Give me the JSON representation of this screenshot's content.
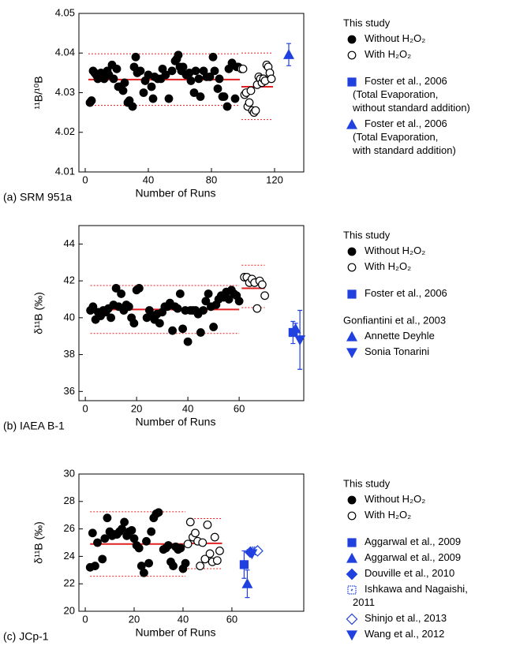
{
  "chart_data": [
    {
      "type": "scatter",
      "caption": "(a) SRM 951a",
      "xlabel": "Number of Runs",
      "ylabel": "¹¹B/¹⁰B",
      "xlim": [
        -4,
        138.5
      ],
      "ylim": [
        4.01,
        4.05
      ],
      "xticks": [
        0,
        40,
        80,
        120
      ],
      "yticks": [
        4.01,
        4.02,
        4.03,
        4.04,
        4.05
      ],
      "line_color": "#e02020",
      "series": [
        {
          "name": "Without H₂O₂",
          "group": "This study",
          "color": "#000000",
          "marker": "circle",
          "x": [
            3,
            4,
            5,
            6,
            7,
            8,
            9,
            10,
            11,
            12,
            14,
            15,
            17,
            18,
            20,
            21,
            22,
            24,
            25,
            27,
            28,
            30,
            31,
            32,
            33,
            35,
            37,
            38,
            40,
            42,
            43,
            44,
            46,
            48,
            49,
            51,
            53,
            55,
            57,
            58,
            59,
            60,
            61,
            62,
            64,
            66,
            67,
            69,
            70,
            72,
            73,
            75,
            77,
            79,
            81,
            82,
            84,
            85,
            87,
            88,
            90,
            91,
            93,
            95,
            96,
            97
          ],
          "values": [
            4.0275,
            4.028,
            4.0355,
            4.035,
            4.0345,
            4.0335,
            4.0345,
            4.035,
            4.0345,
            4.0335,
            4.0355,
            4.0345,
            4.037,
            4.0335,
            4.036,
            4.0315,
            4.0315,
            4.0305,
            4.0325,
            4.0275,
            4.028,
            4.0265,
            4.0365,
            4.039,
            4.035,
            4.0355,
            4.03,
            4.033,
            4.0345,
            4.0315,
            4.0285,
            4.034,
            4.0335,
            4.0335,
            4.036,
            4.0345,
            4.0285,
            4.0355,
            4.038,
            4.0385,
            4.0395,
            4.0365,
            4.0355,
            4.0365,
            4.0345,
            4.035,
            4.033,
            4.03,
            4.0355,
            4.0335,
            4.029,
            4.0355,
            4.034,
            4.034,
            4.039,
            4.0355,
            4.031,
            4.0335,
            4.029,
            4.029,
            4.0265,
            4.036,
            4.0375,
            4.0285,
            4.0365,
            4.0365
          ],
          "mean": {
            "x": [
              2,
              98
            ],
            "value": 4.0333,
            "lower": 4.0268,
            "upper": 4.0398
          }
        },
        {
          "name": "With H₂O₂",
          "group": "This study",
          "color": "#000000",
          "marker": "circle-open",
          "x": [
            99,
            100,
            101,
            102,
            103,
            104,
            105,
            106,
            107,
            108,
            109,
            110,
            111,
            112,
            113,
            114,
            115,
            116,
            117,
            118
          ],
          "values": [
            4.036,
            4.036,
            4.0295,
            4.03,
            4.0265,
            4.0275,
            4.0305,
            4.0255,
            4.025,
            4.0255,
            4.032,
            4.034,
            4.0335,
            4.0325,
            4.0335,
            4.033,
            4.037,
            4.0365,
            4.035,
            4.0335
          ],
          "mean": {
            "x": [
              99,
              119
            ],
            "value": 4.0315,
            "lower": 4.0232,
            "upper": 4.04
          }
        },
        {
          "name": "Foster et al., 2006\n(Total Evaporation,\nwithout standard addition)",
          "color": "#2040e0",
          "marker": "square",
          "x": [],
          "values": []
        },
        {
          "name": "Foster et al., 2006\n(Total Evaporation,\nwith standard addition)",
          "color": "#2040e0",
          "marker": "triangle-up",
          "x": [
            129
          ],
          "values": [
            4.0396
          ],
          "errors": [
            0.0028
          ]
        }
      ]
    },
    {
      "type": "scatter",
      "caption": "(b) IAEA B-1",
      "xlabel": "Number of Runs",
      "ylabel": "δ¹¹B (‰)",
      "xlim": [
        -2.5,
        85.2
      ],
      "ylim": [
        35.5,
        45
      ],
      "xticks": [
        0,
        20,
        40,
        60
      ],
      "yticks": [
        36,
        38,
        40,
        42,
        44
      ],
      "line_color": "#e02020",
      "series": [
        {
          "name": "Without H₂O₂",
          "group": "This study",
          "color": "#000000",
          "marker": "circle",
          "x": [
            2,
            3,
            4,
            5,
            6,
            7,
            8,
            9,
            10,
            11,
            12,
            13,
            14,
            15,
            16,
            17,
            18,
            19,
            20,
            21,
            24,
            25,
            26,
            27,
            28,
            29,
            30,
            31,
            32,
            33,
            34,
            35,
            36,
            37,
            38,
            39,
            40,
            41,
            42,
            43,
            44,
            45,
            46,
            47,
            48,
            49,
            50,
            51,
            52,
            53,
            54,
            55,
            56,
            57,
            58,
            59,
            60
          ],
          "values": [
            40.4,
            40.6,
            39.9,
            40.3,
            40.1,
            40.4,
            40.3,
            40.5,
            40.0,
            40.7,
            41.6,
            40.6,
            41.3,
            40.4,
            40.7,
            40.6,
            40.0,
            39.7,
            41.5,
            41.6,
            40.0,
            40.4,
            40.1,
            39.9,
            40.2,
            39.7,
            40.3,
            40.6,
            40.6,
            40.8,
            39.3,
            40.6,
            40.5,
            41.3,
            39.4,
            40.4,
            38.7,
            40.4,
            40.4,
            40.4,
            40.2,
            39.2,
            40.4,
            40.9,
            41.3,
            40.6,
            39.5,
            40.7,
            41.0,
            41.2,
            41.1,
            41.4,
            41.0,
            41.5,
            41.3,
            41.2,
            40.9
          ],
          "mean": {
            "x": [
              2,
              60
            ],
            "value": 40.45,
            "lower": 39.15,
            "upper": 41.75
          }
        },
        {
          "name": "With H₂O₂",
          "group": "This study",
          "color": "#000000",
          "marker": "circle-open",
          "x": [
            62,
            63,
            64,
            65,
            66,
            67,
            68,
            69,
            70
          ],
          "values": [
            42.2,
            42.2,
            41.9,
            42.1,
            41.9,
            40.5,
            42.0,
            41.8,
            41.2
          ],
          "mean": {
            "x": [
              61,
              70
            ],
            "value": 41.6,
            "lower": 40.55,
            "upper": 42.85
          }
        },
        {
          "name": "Foster et al., 2006",
          "color": "#2040e0",
          "marker": "square",
          "x": [
            81
          ],
          "values": [
            39.2
          ],
          "errors": [
            0.6
          ]
        },
        {
          "name": "Annette Deyhle",
          "group": "Gonfiantini et al., 2003",
          "color": "#2040e0",
          "marker": "triangle-up",
          "x": [
            82
          ],
          "values": [
            39.4
          ],
          "errors": [
            0.3
          ]
        },
        {
          "name": "Sonia Tonarini",
          "group": "Gonfiantini et al., 2003",
          "color": "#2040e0",
          "marker": "triangle-down",
          "x": [
            83.7
          ],
          "values": [
            38.8
          ],
          "errors": [
            1.6
          ]
        }
      ]
    },
    {
      "type": "scatter",
      "caption": "(c) JCp-1",
      "xlabel": "Number of Runs",
      "ylabel": "δ¹¹B (‰)",
      "xlim": [
        -2.6,
        89.4
      ],
      "ylim": [
        20,
        30
      ],
      "xticks": [
        0,
        20,
        40,
        60
      ],
      "yticks": [
        20,
        22,
        24,
        26,
        28,
        30
      ],
      "line_color": "#e02020",
      "series": [
        {
          "name": "Without H₂O₂",
          "group": "This study",
          "color": "#000000",
          "marker": "circle",
          "x": [
            2,
            3,
            4,
            5,
            7,
            8,
            9,
            10,
            11,
            12,
            13,
            14,
            15,
            16,
            17,
            18,
            19,
            20,
            21,
            22,
            23,
            24,
            25,
            26,
            27,
            28,
            29,
            30,
            32,
            33,
            34,
            35,
            36,
            37,
            38,
            39,
            40,
            41
          ],
          "values": [
            23.2,
            25.7,
            23.3,
            25.0,
            23.8,
            25.3,
            26.8,
            25.8,
            25.5,
            25.6,
            25.6,
            25.8,
            26.0,
            26.5,
            25.5,
            25.8,
            25.9,
            25.3,
            24.8,
            24.6,
            23.3,
            22.8,
            25.1,
            23.5,
            25.8,
            26.8,
            27.1,
            27.2,
            24.5,
            24.6,
            24.8,
            23.6,
            23.3,
            24.7,
            24.5,
            24.6,
            23.1,
            23.5
          ],
          "mean": {
            "x": [
              2,
              41
            ],
            "value": 24.9,
            "lower": 22.55,
            "upper": 27.25
          }
        },
        {
          "name": "With H₂O₂",
          "group": "This study",
          "color": "#000000",
          "marker": "circle-open",
          "x": [
            42,
            43,
            44,
            45,
            46,
            47,
            48,
            49,
            50,
            51,
            52,
            53,
            54,
            55
          ],
          "values": [
            24.9,
            26.5,
            25.4,
            25.7,
            25.1,
            23.3,
            25.0,
            23.8,
            26.3,
            24.2,
            23.6,
            25.4,
            23.7,
            24.4
          ],
          "mean": {
            "x": [
              42,
              56
            ],
            "value": 24.95,
            "lower": 23.1,
            "upper": 26.75
          }
        },
        {
          "name": "Aggarwal et al., 2009",
          "color": "#2040e0",
          "marker": "square",
          "x": [
            65
          ],
          "values": [
            23.4
          ],
          "errors": [
            1.0
          ]
        },
        {
          "name": "Aggarwal et al., 2009",
          "color": "#2040e0",
          "marker": "triangle-up",
          "x": [
            66.3
          ],
          "values": [
            22.0
          ],
          "errors": [
            1.0
          ]
        },
        {
          "name": "Douville et al., 2010",
          "color": "#2040e0",
          "marker": "diamond",
          "x": [
            67.5
          ],
          "values": [
            24.3
          ],
          "errors": [
            0.2
          ]
        },
        {
          "name": "Ishkawa and Nagaishi,\n2011",
          "color": "#2040e0",
          "marker": "square-dot",
          "x": [
            69
          ],
          "values": [
            24.4
          ],
          "errors": [
            0.2
          ]
        },
        {
          "name": "Shinjo et al., 2013",
          "color": "#2040e0",
          "marker": "diamond-open",
          "x": [
            70.5
          ],
          "values": [
            24.4
          ],
          "errors": [
            0.2
          ]
        },
        {
          "name": "Wang et al., 2012",
          "color": "#2040e0",
          "marker": "triangle-down",
          "x": [
            68.2
          ],
          "values": [
            24.2
          ]
        }
      ]
    }
  ]
}
